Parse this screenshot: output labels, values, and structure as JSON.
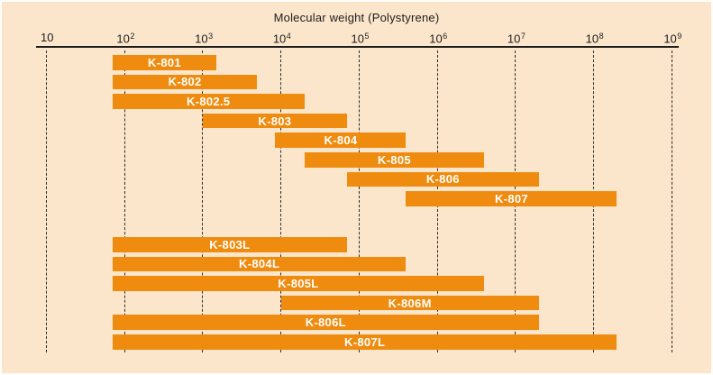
{
  "figure": {
    "title": "Molecular weight (Polystyrene)"
  },
  "colors": {
    "background": "#FBE6CB",
    "bar": "#EF8C0F",
    "bar_label_text": "#FFFFFF",
    "axis_text": "#1C1C1C",
    "grid_line": "#2B2B2B"
  },
  "chart_data": {
    "type": "bar",
    "variant": "horizontal-range",
    "title": "Molecular weight (Polystyrene)",
    "x_axis": {
      "scale": "log10",
      "min": 10,
      "max": 1000000000,
      "grid": "dashed-vertical",
      "ticks": [
        {
          "value": 10,
          "base": "10",
          "sup": ""
        },
        {
          "value": 100,
          "base": "10",
          "sup": "2"
        },
        {
          "value": 1000,
          "base": "10",
          "sup": "3"
        },
        {
          "value": 10000,
          "base": "10",
          "sup": "4"
        },
        {
          "value": 100000,
          "base": "10",
          "sup": "5"
        },
        {
          "value": 1000000,
          "base": "10",
          "sup": "6"
        },
        {
          "value": 10000000,
          "base": "10",
          "sup": "7"
        },
        {
          "value": 100000000,
          "base": "10",
          "sup": "8"
        },
        {
          "value": 1000000000,
          "base": "10",
          "sup": "9"
        }
      ]
    },
    "bars": [
      {
        "label": "K-801",
        "group": 0,
        "row": 0,
        "min": 70,
        "max": 1500
      },
      {
        "label": "K-802",
        "group": 0,
        "row": 1,
        "min": 70,
        "max": 5000
      },
      {
        "label": "K-802.5",
        "group": 0,
        "row": 2,
        "min": 70,
        "max": 20000
      },
      {
        "label": "K-803",
        "group": 0,
        "row": 3,
        "min": 1000,
        "max": 70000
      },
      {
        "label": "K-804",
        "group": 0,
        "row": 4,
        "min": 8500,
        "max": 400000
      },
      {
        "label": "K-805",
        "group": 0,
        "row": 5,
        "min": 20000,
        "max": 4000000
      },
      {
        "label": "K-806",
        "group": 0,
        "row": 6,
        "min": 70000,
        "max": 20000000
      },
      {
        "label": "K-807",
        "group": 0,
        "row": 7,
        "min": 400000,
        "max": 200000000
      },
      {
        "label": "K-803L",
        "group": 1,
        "row": 0,
        "min": 70,
        "max": 70000
      },
      {
        "label": "K-804L",
        "group": 1,
        "row": 1,
        "min": 70,
        "max": 400000
      },
      {
        "label": "K-805L",
        "group": 1,
        "row": 2,
        "min": 70,
        "max": 4000000
      },
      {
        "label": "K-806M",
        "group": 1,
        "row": 3,
        "min": 10000,
        "max": 20000000
      },
      {
        "label": "K-806L",
        "group": 1,
        "row": 4,
        "min": 70,
        "max": 20000000
      },
      {
        "label": "K-807L",
        "group": 1,
        "row": 5,
        "min": 70,
        "max": 200000000
      }
    ]
  }
}
